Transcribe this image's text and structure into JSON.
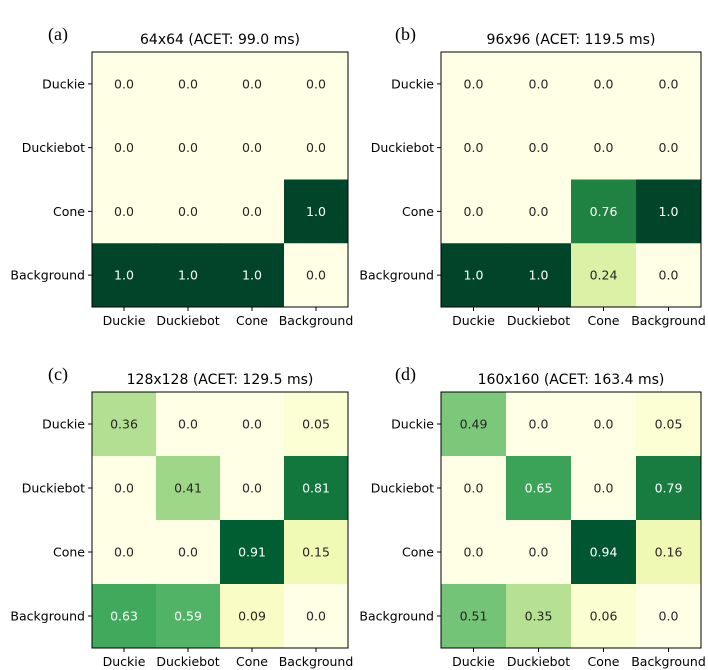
{
  "chart_data": [
    {
      "type": "heatmap",
      "panel_label": "(a)",
      "title": "64x64 (ACET: 99.0 ms)",
      "row_labels": [
        "Duckie",
        "Duckiebot",
        "Cone",
        "Background"
      ],
      "col_labels": [
        "Duckie",
        "Duckiebot",
        "Cone",
        "Background"
      ],
      "values": [
        [
          0.0,
          0.0,
          0.0,
          0.0
        ],
        [
          0.0,
          0.0,
          0.0,
          0.0
        ],
        [
          0.0,
          0.0,
          0.0,
          1.0
        ],
        [
          1.0,
          1.0,
          1.0,
          0.0
        ]
      ],
      "value_labels": [
        [
          "0.0",
          "0.0",
          "0.0",
          "0.0"
        ],
        [
          "0.0",
          "0.0",
          "0.0",
          "0.0"
        ],
        [
          "0.0",
          "0.0",
          "0.0",
          "1.0"
        ],
        [
          "1.0",
          "1.0",
          "1.0",
          "0.0"
        ]
      ],
      "colormap": "Greens",
      "range": [
        0,
        1
      ]
    },
    {
      "type": "heatmap",
      "panel_label": "(b)",
      "title": "96x96 (ACET: 119.5 ms)",
      "row_labels": [
        "Duckie",
        "Duckiebot",
        "Cone",
        "Background"
      ],
      "col_labels": [
        "Duckie",
        "Duckiebot",
        "Cone",
        "Background"
      ],
      "values": [
        [
          0.0,
          0.0,
          0.0,
          0.0
        ],
        [
          0.0,
          0.0,
          0.0,
          0.0
        ],
        [
          0.0,
          0.0,
          0.76,
          1.0
        ],
        [
          1.0,
          1.0,
          0.24,
          0.0
        ]
      ],
      "value_labels": [
        [
          "0.0",
          "0.0",
          "0.0",
          "0.0"
        ],
        [
          "0.0",
          "0.0",
          "0.0",
          "0.0"
        ],
        [
          "0.0",
          "0.0",
          "0.76",
          "1.0"
        ],
        [
          "1.0",
          "1.0",
          "0.24",
          "0.0"
        ]
      ],
      "colormap": "Greens",
      "range": [
        0,
        1
      ]
    },
    {
      "type": "heatmap",
      "panel_label": "(c)",
      "title": "128x128 (ACET: 129.5 ms)",
      "row_labels": [
        "Duckie",
        "Duckiebot",
        "Cone",
        "Background"
      ],
      "col_labels": [
        "Duckie",
        "Duckiebot",
        "Cone",
        "Background"
      ],
      "values": [
        [
          0.36,
          0.0,
          0.0,
          0.05
        ],
        [
          0.0,
          0.41,
          0.0,
          0.81
        ],
        [
          0.0,
          0.0,
          0.91,
          0.15
        ],
        [
          0.63,
          0.59,
          0.09,
          0.0
        ]
      ],
      "value_labels": [
        [
          "0.36",
          "0.0",
          "0.0",
          "0.05"
        ],
        [
          "0.0",
          "0.41",
          "0.0",
          "0.81"
        ],
        [
          "0.0",
          "0.0",
          "0.91",
          "0.15"
        ],
        [
          "0.63",
          "0.59",
          "0.09",
          "0.0"
        ]
      ],
      "colormap": "Greens",
      "range": [
        0,
        1
      ]
    },
    {
      "type": "heatmap",
      "panel_label": "(d)",
      "title": "160x160 (ACET: 163.4 ms)",
      "row_labels": [
        "Duckie",
        "Duckiebot",
        "Cone",
        "Background"
      ],
      "col_labels": [
        "Duckie",
        "Duckiebot",
        "Cone",
        "Background"
      ],
      "values": [
        [
          0.49,
          0.0,
          0.0,
          0.05
        ],
        [
          0.0,
          0.65,
          0.0,
          0.79
        ],
        [
          0.0,
          0.0,
          0.94,
          0.16
        ],
        [
          0.51,
          0.35,
          0.06,
          0.0
        ]
      ],
      "value_labels": [
        [
          "0.49",
          "0.0",
          "0.0",
          "0.05"
        ],
        [
          "0.0",
          "0.65",
          "0.0",
          "0.79"
        ],
        [
          "0.0",
          "0.0",
          "0.94",
          "0.16"
        ],
        [
          "0.51",
          "0.35",
          "0.06",
          "0.0"
        ]
      ],
      "colormap": "Greens",
      "range": [
        0,
        1
      ]
    }
  ]
}
